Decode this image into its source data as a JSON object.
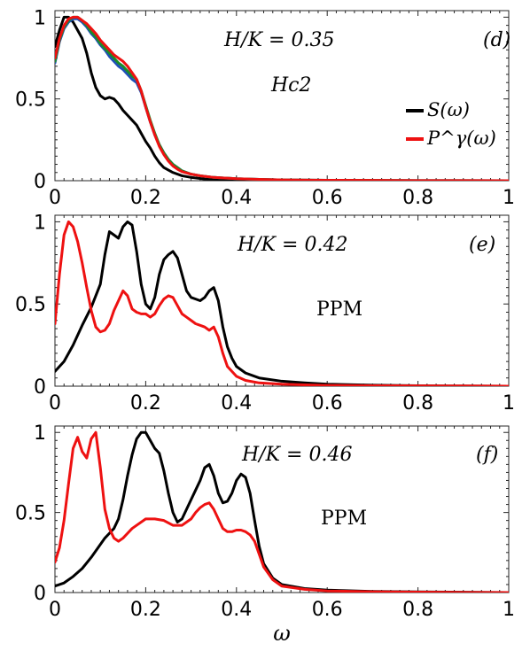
{
  "chart_data": [
    {
      "type": "line",
      "panel_label": "(d)",
      "annotation_main": "H/K = 0.35",
      "annotation_secondary": "Hc2",
      "xlim": [
        0,
        1
      ],
      "ylim": [
        0,
        1.04
      ],
      "x_ticks": [
        "0",
        "0.2",
        "0.4",
        "0.6",
        "0.8",
        "1"
      ],
      "y_ticks": [
        "0",
        "0.5",
        "1"
      ],
      "legend": {
        "placement": "right",
        "entries": [
          "S(ω)",
          "P^γ(ω)"
        ]
      },
      "series": [
        {
          "name": "S(ω)",
          "color": "#000000",
          "x": [
            0,
            0.01,
            0.02,
            0.03,
            0.04,
            0.05,
            0.06,
            0.07,
            0.08,
            0.09,
            0.1,
            0.11,
            0.12,
            0.13,
            0.14,
            0.15,
            0.16,
            0.17,
            0.18,
            0.19,
            0.2,
            0.21,
            0.22,
            0.23,
            0.24,
            0.26,
            0.28,
            0.3,
            0.33,
            0.36,
            0.4,
            0.45,
            0.5,
            0.6,
            0.7,
            0.8,
            0.9,
            1.0
          ],
          "y": [
            0.82,
            0.92,
            1.0,
            1.0,
            0.97,
            0.92,
            0.87,
            0.78,
            0.66,
            0.57,
            0.52,
            0.5,
            0.51,
            0.5,
            0.47,
            0.43,
            0.4,
            0.37,
            0.34,
            0.29,
            0.24,
            0.2,
            0.15,
            0.11,
            0.08,
            0.05,
            0.03,
            0.02,
            0.01,
            0.008,
            0.005,
            0.003,
            0.002,
            0.001,
            0.0,
            0.0,
            0.0,
            0.0
          ]
        },
        {
          "name": "",
          "color": "#1f4fb8",
          "x": [
            0,
            0.01,
            0.02,
            0.03,
            0.04,
            0.05,
            0.06,
            0.07,
            0.08,
            0.09,
            0.1,
            0.11,
            0.12,
            0.13,
            0.14,
            0.15,
            0.16,
            0.17,
            0.18,
            0.19,
            0.2,
            0.21,
            0.22,
            0.23,
            0.24,
            0.25,
            0.26,
            0.27,
            0.28,
            0.3,
            0.32,
            0.35,
            0.4,
            0.45,
            0.5,
            0.6,
            0.7,
            0.8,
            0.9,
            1.0
          ],
          "y": [
            0.72,
            0.85,
            0.93,
            0.97,
            0.99,
            0.99,
            0.97,
            0.94,
            0.9,
            0.87,
            0.83,
            0.8,
            0.76,
            0.73,
            0.7,
            0.68,
            0.65,
            0.62,
            0.6,
            0.54,
            0.45,
            0.36,
            0.28,
            0.22,
            0.17,
            0.13,
            0.1,
            0.08,
            0.06,
            0.04,
            0.03,
            0.02,
            0.012,
            0.008,
            0.005,
            0.003,
            0.002,
            0.001,
            0.001,
            0.0
          ]
        },
        {
          "name": "",
          "color": "#1a8c2a",
          "x": [
            0,
            0.01,
            0.02,
            0.03,
            0.04,
            0.05,
            0.06,
            0.07,
            0.08,
            0.09,
            0.1,
            0.11,
            0.12,
            0.13,
            0.14,
            0.15,
            0.16,
            0.17,
            0.18,
            0.19,
            0.2,
            0.21,
            0.22,
            0.23,
            0.24,
            0.25,
            0.26,
            0.27,
            0.28,
            0.3,
            0.32,
            0.35,
            0.4,
            0.45,
            0.5,
            0.6,
            0.7,
            0.8,
            0.9,
            1.0
          ],
          "y": [
            0.73,
            0.86,
            0.94,
            0.98,
            1.0,
            1.0,
            0.98,
            0.95,
            0.91,
            0.88,
            0.84,
            0.81,
            0.78,
            0.75,
            0.72,
            0.7,
            0.67,
            0.64,
            0.62,
            0.55,
            0.46,
            0.37,
            0.29,
            0.22,
            0.17,
            0.13,
            0.1,
            0.08,
            0.06,
            0.04,
            0.03,
            0.02,
            0.012,
            0.008,
            0.005,
            0.003,
            0.002,
            0.001,
            0.001,
            0.0
          ]
        },
        {
          "name": "P^γ(ω)",
          "color": "#ee1111",
          "x": [
            0,
            0.01,
            0.02,
            0.03,
            0.04,
            0.05,
            0.06,
            0.07,
            0.08,
            0.09,
            0.1,
            0.11,
            0.12,
            0.13,
            0.14,
            0.15,
            0.16,
            0.17,
            0.18,
            0.19,
            0.2,
            0.21,
            0.22,
            0.23,
            0.24,
            0.25,
            0.26,
            0.27,
            0.28,
            0.3,
            0.32,
            0.35,
            0.4,
            0.45,
            0.5,
            0.6,
            0.7,
            0.8,
            0.9,
            1.0
          ],
          "y": [
            0.75,
            0.87,
            0.95,
            0.99,
            1.0,
            1.0,
            0.98,
            0.96,
            0.93,
            0.9,
            0.86,
            0.83,
            0.8,
            0.77,
            0.75,
            0.73,
            0.7,
            0.66,
            0.62,
            0.55,
            0.45,
            0.36,
            0.28,
            0.21,
            0.16,
            0.12,
            0.09,
            0.07,
            0.055,
            0.04,
            0.03,
            0.02,
            0.012,
            0.008,
            0.005,
            0.003,
            0.002,
            0.001,
            0.001,
            0.0
          ]
        }
      ]
    },
    {
      "type": "line",
      "panel_label": "(e)",
      "annotation_main": "H/K = 0.42",
      "annotation_secondary": "PPM",
      "xlim": [
        0,
        1
      ],
      "ylim": [
        0,
        1.04
      ],
      "x_ticks": [
        "0",
        "0.2",
        "0.4",
        "0.6",
        "0.8",
        "1"
      ],
      "y_ticks": [
        "0",
        "0.5",
        "1"
      ],
      "series": [
        {
          "name": "S(ω)",
          "color": "#000000",
          "x": [
            0,
            0.02,
            0.04,
            0.06,
            0.08,
            0.1,
            0.11,
            0.12,
            0.13,
            0.14,
            0.15,
            0.16,
            0.17,
            0.18,
            0.19,
            0.2,
            0.21,
            0.22,
            0.23,
            0.24,
            0.25,
            0.26,
            0.27,
            0.28,
            0.29,
            0.3,
            0.31,
            0.32,
            0.33,
            0.34,
            0.35,
            0.36,
            0.37,
            0.38,
            0.39,
            0.4,
            0.42,
            0.45,
            0.5,
            0.55,
            0.6,
            0.7,
            0.8,
            0.9,
            1.0
          ],
          "y": [
            0.09,
            0.15,
            0.25,
            0.37,
            0.48,
            0.62,
            0.8,
            0.94,
            0.92,
            0.9,
            0.97,
            1.0,
            0.98,
            0.82,
            0.62,
            0.5,
            0.47,
            0.54,
            0.68,
            0.77,
            0.8,
            0.82,
            0.78,
            0.68,
            0.58,
            0.54,
            0.53,
            0.52,
            0.54,
            0.58,
            0.6,
            0.52,
            0.36,
            0.24,
            0.17,
            0.12,
            0.08,
            0.05,
            0.03,
            0.02,
            0.012,
            0.006,
            0.003,
            0.001,
            0.0
          ]
        },
        {
          "name": "P^γ(ω)",
          "color": "#ee1111",
          "x": [
            0,
            0.01,
            0.02,
            0.03,
            0.04,
            0.05,
            0.06,
            0.07,
            0.08,
            0.09,
            0.1,
            0.11,
            0.12,
            0.13,
            0.14,
            0.15,
            0.16,
            0.17,
            0.18,
            0.19,
            0.2,
            0.21,
            0.22,
            0.23,
            0.24,
            0.25,
            0.26,
            0.27,
            0.28,
            0.29,
            0.3,
            0.31,
            0.32,
            0.33,
            0.34,
            0.35,
            0.36,
            0.37,
            0.38,
            0.4,
            0.42,
            0.45,
            0.5,
            0.55,
            0.6,
            0.7,
            0.8,
            0.9,
            1.0
          ],
          "y": [
            0.38,
            0.68,
            0.92,
            1.0,
            0.97,
            0.88,
            0.75,
            0.6,
            0.46,
            0.36,
            0.33,
            0.34,
            0.38,
            0.46,
            0.52,
            0.58,
            0.55,
            0.47,
            0.45,
            0.44,
            0.44,
            0.42,
            0.44,
            0.49,
            0.53,
            0.55,
            0.54,
            0.49,
            0.44,
            0.42,
            0.4,
            0.38,
            0.37,
            0.36,
            0.34,
            0.36,
            0.3,
            0.2,
            0.12,
            0.06,
            0.035,
            0.02,
            0.012,
            0.008,
            0.005,
            0.003,
            0.002,
            0.001,
            0.0
          ]
        }
      ]
    },
    {
      "type": "line",
      "panel_label": "(f)",
      "annotation_main": "H/K = 0.46",
      "annotation_secondary": "PPM",
      "xlabel": "ω",
      "xlim": [
        0,
        1
      ],
      "ylim": [
        0,
        1.04
      ],
      "x_ticks": [
        "0",
        "0.2",
        "0.4",
        "0.6",
        "0.8",
        "1"
      ],
      "y_ticks": [
        "0",
        "0.5",
        "1"
      ],
      "series": [
        {
          "name": "S(ω)",
          "color": "#000000",
          "x": [
            0,
            0.02,
            0.04,
            0.06,
            0.08,
            0.1,
            0.11,
            0.12,
            0.13,
            0.14,
            0.15,
            0.16,
            0.17,
            0.18,
            0.19,
            0.2,
            0.21,
            0.22,
            0.23,
            0.24,
            0.25,
            0.26,
            0.27,
            0.28,
            0.29,
            0.3,
            0.31,
            0.32,
            0.33,
            0.34,
            0.35,
            0.36,
            0.37,
            0.38,
            0.39,
            0.4,
            0.41,
            0.42,
            0.43,
            0.44,
            0.45,
            0.46,
            0.48,
            0.5,
            0.55,
            0.6,
            0.7,
            0.8,
            0.9,
            1.0
          ],
          "y": [
            0.04,
            0.06,
            0.1,
            0.15,
            0.22,
            0.3,
            0.34,
            0.37,
            0.4,
            0.46,
            0.58,
            0.73,
            0.86,
            0.96,
            1.0,
            1.0,
            0.95,
            0.9,
            0.87,
            0.76,
            0.62,
            0.5,
            0.44,
            0.46,
            0.52,
            0.58,
            0.64,
            0.7,
            0.78,
            0.8,
            0.73,
            0.62,
            0.56,
            0.57,
            0.62,
            0.7,
            0.74,
            0.72,
            0.62,
            0.45,
            0.29,
            0.18,
            0.09,
            0.05,
            0.025,
            0.015,
            0.007,
            0.004,
            0.002,
            0.0
          ]
        },
        {
          "name": "P^γ(ω)",
          "color": "#ee1111",
          "x": [
            0,
            0.01,
            0.02,
            0.03,
            0.04,
            0.05,
            0.06,
            0.07,
            0.08,
            0.09,
            0.1,
            0.11,
            0.12,
            0.13,
            0.14,
            0.15,
            0.16,
            0.17,
            0.18,
            0.2,
            0.22,
            0.24,
            0.26,
            0.28,
            0.3,
            0.31,
            0.32,
            0.33,
            0.34,
            0.35,
            0.36,
            0.37,
            0.38,
            0.39,
            0.4,
            0.41,
            0.42,
            0.43,
            0.44,
            0.45,
            0.46,
            0.48,
            0.5,
            0.55,
            0.6,
            0.7,
            0.8,
            0.9,
            1.0
          ],
          "y": [
            0.19,
            0.28,
            0.45,
            0.68,
            0.9,
            0.97,
            0.88,
            0.84,
            0.96,
            1.0,
            0.78,
            0.52,
            0.4,
            0.34,
            0.32,
            0.34,
            0.37,
            0.4,
            0.42,
            0.46,
            0.46,
            0.45,
            0.42,
            0.42,
            0.46,
            0.5,
            0.53,
            0.55,
            0.56,
            0.52,
            0.46,
            0.4,
            0.38,
            0.38,
            0.39,
            0.39,
            0.38,
            0.36,
            0.32,
            0.24,
            0.16,
            0.08,
            0.04,
            0.02,
            0.01,
            0.005,
            0.003,
            0.001,
            0.0
          ]
        }
      ]
    }
  ]
}
